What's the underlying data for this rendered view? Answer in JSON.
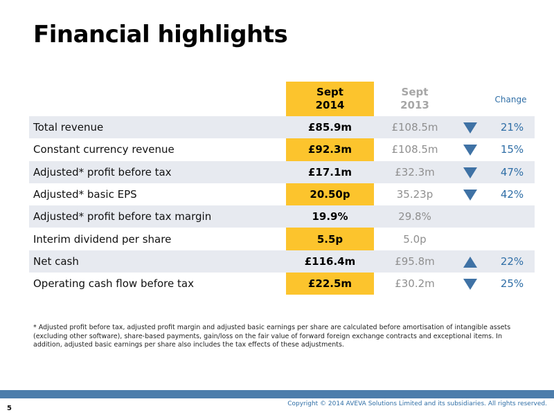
{
  "slide": {
    "title": "Financial highlights",
    "page_number": "5",
    "copyright": "Copyright © 2014 AVEVA Solutions Limited and its subsidiaries. All rights reserved."
  },
  "table": {
    "headers": {
      "current_line1": "Sept",
      "current_line2": "2014",
      "previous_line1": "Sept",
      "previous_line2": "2013",
      "change": "Change"
    },
    "rows": [
      {
        "label": "Total revenue",
        "current": "£85.9m",
        "previous": "£108.5m",
        "direction": "down",
        "change": "21%"
      },
      {
        "label": "Constant currency revenue",
        "current": "£92.3m",
        "previous": "£108.5m",
        "direction": "down",
        "change": "15%"
      },
      {
        "label": "Adjusted* profit before tax",
        "current": "£17.1m",
        "previous": "£32.3m",
        "direction": "down",
        "change": "47%"
      },
      {
        "label": "Adjusted* basic EPS",
        "current": "20.50p",
        "previous": "35.23p",
        "direction": "down",
        "change": "42%"
      },
      {
        "label": "Adjusted* profit before tax margin",
        "current": "19.9%",
        "previous": "29.8%",
        "direction": "",
        "change": ""
      },
      {
        "label": "Interim dividend per share",
        "current": "5.5p",
        "previous": "5.0p",
        "direction": "",
        "change": ""
      },
      {
        "label": "Net cash",
        "current": "£116.4m",
        "previous": "£95.8m",
        "direction": "up",
        "change": "22%"
      },
      {
        "label": "Operating cash flow before tax",
        "current": "£22.5m",
        "previous": "£30.2m",
        "direction": "down",
        "change": "25%"
      }
    ]
  },
  "footnote": "* Adjusted profit before tax, adjusted profit margin and adjusted basic earnings per share are calculated before amortisation of intangible assets (excluding other software), share-based payments, gain/loss on the fair value of forward foreign exchange contracts and exceptional items. In addition, adjusted basic earnings per share also includes the tax effects of these adjustments.",
  "colors": {
    "highlight": "#fcc42d",
    "row_shade": "#e7eaf0",
    "accent_blue": "#2f6ea6",
    "arrow": "#3f72a5",
    "bottom_bar": "#4c7dab"
  }
}
